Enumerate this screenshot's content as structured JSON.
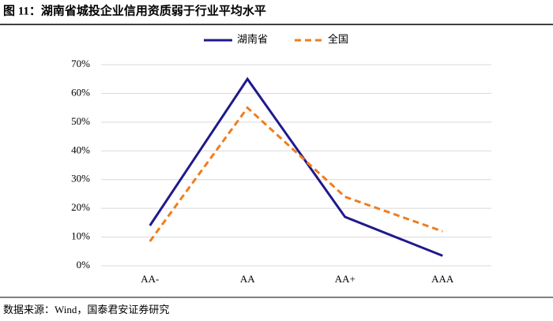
{
  "chart_data": {
    "type": "line",
    "title": "图 11：湖南省城投企业信用资质弱于行业平均水平",
    "source": "数据来源：Wind，国泰君安证券研究",
    "categories": [
      "AA-",
      "AA",
      "AA+",
      "AAA"
    ],
    "series": [
      {
        "name": "湖南省",
        "color": "#1f1a8a",
        "dash": "solid",
        "values": [
          14,
          65,
          17,
          3.5
        ]
      },
      {
        "name": "全国",
        "color": "#f07d1e",
        "dash": "dashed",
        "values": [
          8.5,
          55,
          24,
          12
        ]
      }
    ],
    "ylim": [
      0,
      70
    ],
    "yticks": [
      {
        "value": 0,
        "label": "0%"
      },
      {
        "value": 10,
        "label": "10%"
      },
      {
        "value": 20,
        "label": "20%"
      },
      {
        "value": 30,
        "label": "30%"
      },
      {
        "value": 40,
        "label": "40%"
      },
      {
        "value": 50,
        "label": "50%"
      },
      {
        "value": 60,
        "label": "60%"
      },
      {
        "value": 70,
        "label": "70%"
      }
    ],
    "grid": true,
    "legend": "top"
  }
}
